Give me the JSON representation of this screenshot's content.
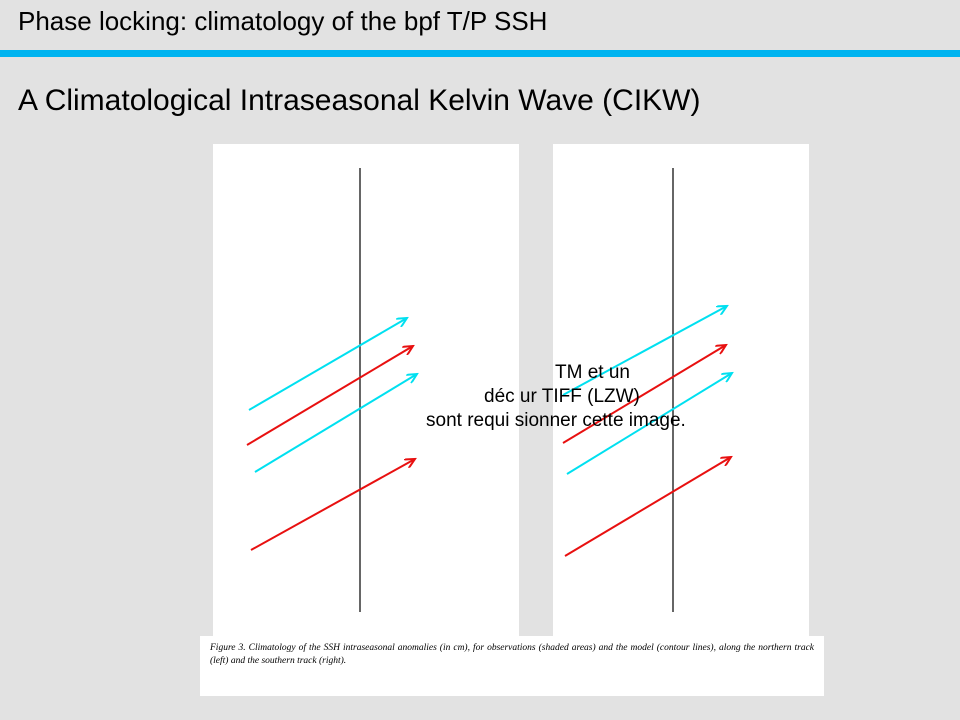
{
  "header": {
    "title": "Phase locking: climatology of the bpf T/P SSH",
    "accent_color": "#00b4f0"
  },
  "subtitle": "A Climatological  Intraseasonal Kelvin Wave (CIKW)",
  "placeholder": {
    "line1": "TM et un",
    "line2": "déc    ur TIFF (LZW)",
    "line3": "sont requi    sionner cette image."
  },
  "arrows": {
    "colors": {
      "cyan": "#00e0f0",
      "red": "#e81010"
    },
    "description_note": "diagonal wave-propagation arrows drawn over both panels"
  },
  "caption": {
    "text": "Figure 3. Climatology of the SSH intraseasonal anomalies (in cm), for observations (shaded areas) and the model (contour lines), along the northern track (left) and the southern track (right)."
  }
}
